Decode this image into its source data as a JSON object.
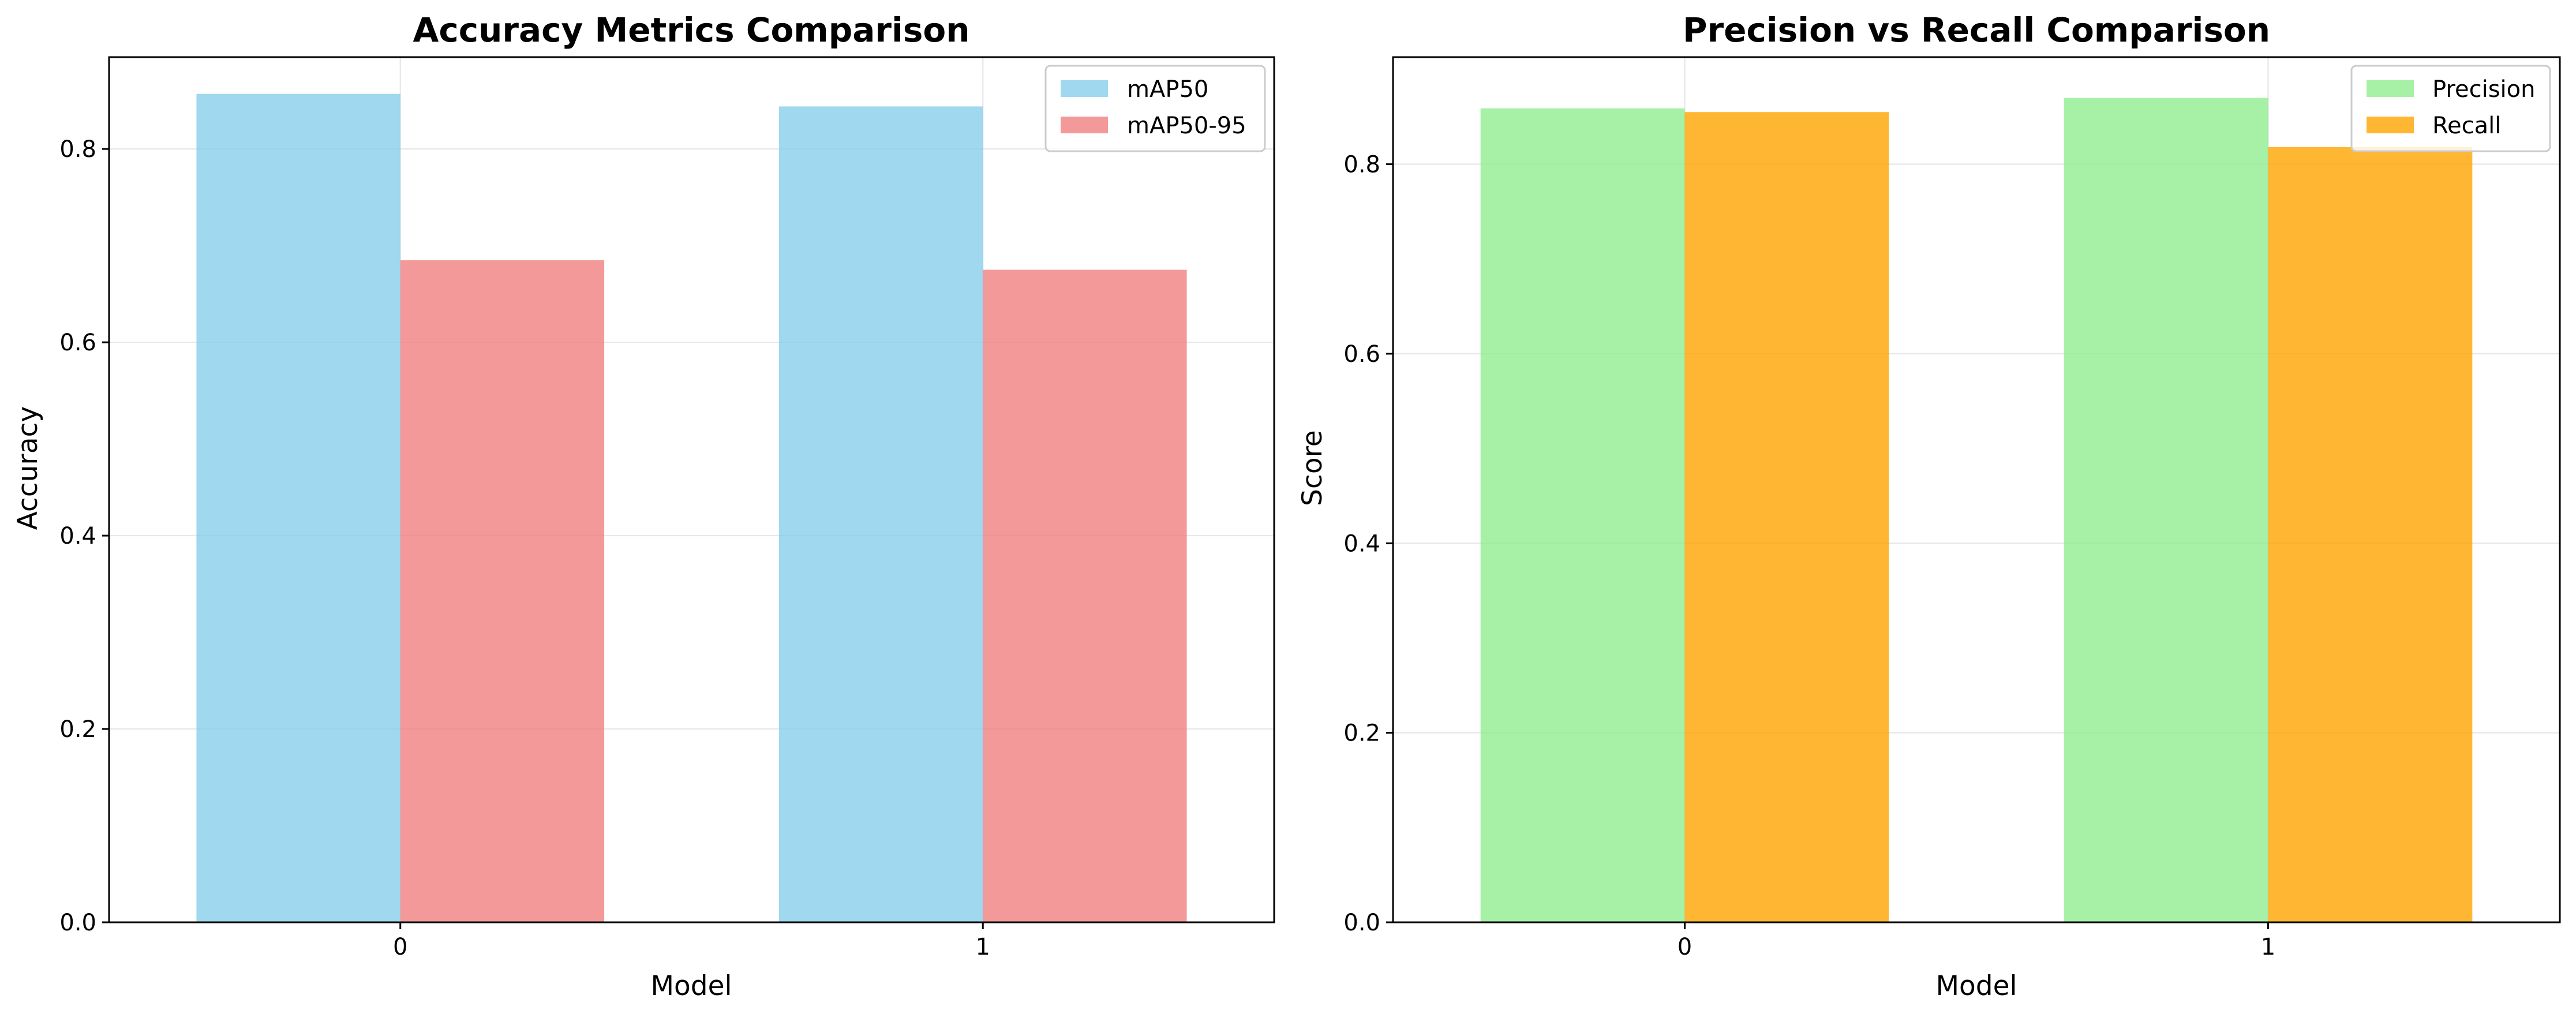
{
  "chart_data": [
    {
      "type": "bar",
      "title": "Accuracy Metrics Comparison",
      "xlabel": "Model",
      "ylabel": "Accuracy",
      "categories": [
        "0",
        "1"
      ],
      "ylim": [
        0,
        0.895
      ],
      "yticks": [
        0.0,
        0.2,
        0.4,
        0.6,
        0.8
      ],
      "ytick_labels": [
        "0.0",
        "0.2",
        "0.4",
        "0.6",
        "0.8"
      ],
      "grid": true,
      "legend_position": "top-right",
      "series": [
        {
          "name": "mAP50",
          "values": [
            0.857,
            0.844
          ],
          "color": "#87ceeb"
        },
        {
          "name": "mAP50-95",
          "values": [
            0.685,
            0.675
          ],
          "color": "#f08080"
        }
      ]
    },
    {
      "type": "bar",
      "title": "Precision vs Recall Comparison",
      "xlabel": "Model",
      "ylabel": "Score",
      "categories": [
        "0",
        "1"
      ],
      "ylim": [
        0,
        0.913
      ],
      "yticks": [
        0.0,
        0.2,
        0.4,
        0.6,
        0.8
      ],
      "ytick_labels": [
        "0.0",
        "0.2",
        "0.4",
        "0.6",
        "0.8"
      ],
      "grid": true,
      "legend_position": "top-right",
      "series": [
        {
          "name": "Precision",
          "values": [
            0.859,
            0.87
          ],
          "color": "#90ee90"
        },
        {
          "name": "Recall",
          "values": [
            0.855,
            0.818
          ],
          "color": "#ffa500"
        }
      ]
    }
  ]
}
